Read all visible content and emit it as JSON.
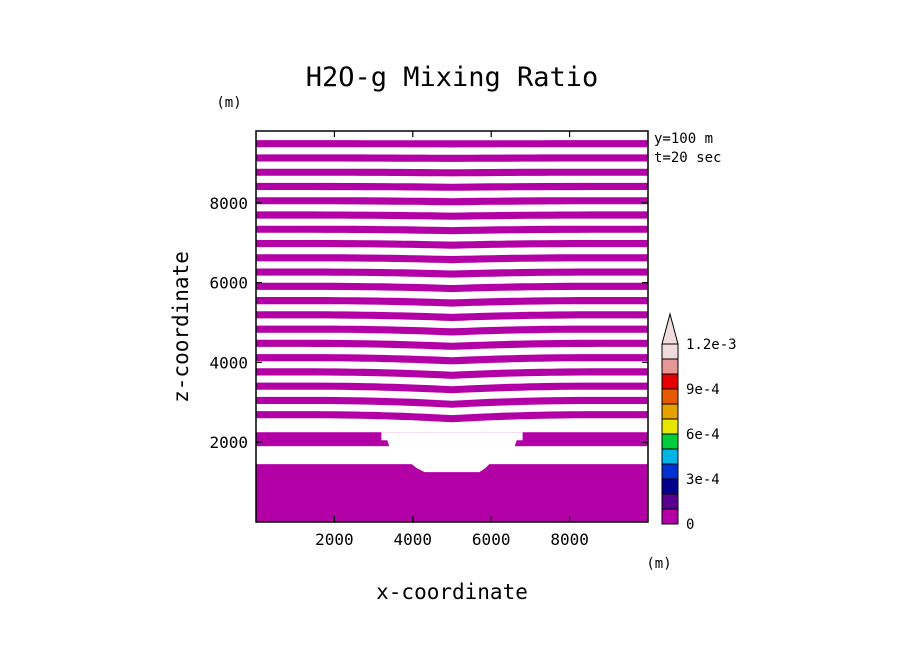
{
  "chart_data": {
    "type": "heatmap",
    "title": "H2O-g Mixing Ratio",
    "xlabel": "x-coordinate",
    "ylabel": "z-coordinate",
    "xunit": "(m)",
    "yunit": "(m)",
    "annotations": [
      "y=100 m",
      "t=20 sec"
    ],
    "xlim": [
      0,
      10000
    ],
    "ylim": [
      0,
      9800
    ],
    "xticks": [
      2000,
      4000,
      6000,
      8000
    ],
    "yticks": [
      2000,
      4000,
      6000,
      8000
    ],
    "field_color": "#b300a6",
    "bands_upper": {
      "z_start": 2600,
      "z_end": 9750,
      "count": 20,
      "center_x": 5000,
      "edge_sag": 100,
      "sag_extent": 3600
    },
    "lower_block": {
      "z_bottom": 0,
      "z_top": 2250,
      "gap_bottom": 1450,
      "gap_top": 1900
    },
    "cutout_profile": [
      [
        3200,
        2250
      ],
      [
        3200,
        2050
      ],
      [
        3350,
        2050
      ],
      [
        3400,
        1900
      ],
      [
        3500,
        1800
      ],
      [
        3700,
        1800
      ],
      [
        3800,
        1650
      ],
      [
        3850,
        1550
      ],
      [
        4100,
        1350
      ],
      [
        4300,
        1250
      ],
      [
        5700,
        1250
      ],
      [
        5850,
        1350
      ],
      [
        6050,
        1550
      ],
      [
        6150,
        1650
      ],
      [
        6300,
        1800
      ],
      [
        6500,
        1800
      ],
      [
        6600,
        1900
      ],
      [
        6650,
        2050
      ],
      [
        6800,
        2050
      ],
      [
        6800,
        2250
      ]
    ],
    "colorbar": {
      "labels": [
        "0",
        "3e-4",
        "6e-4",
        "9e-4",
        "1.2e-3"
      ],
      "label_values": [
        0,
        0.0003,
        0.0006,
        0.0009,
        0.0012
      ],
      "colors": [
        "#b300a6",
        "#5a0090",
        "#00008a",
        "#0032d2",
        "#00b4e6",
        "#00cd3c",
        "#e6e600",
        "#e6a000",
        "#e65a00",
        "#e60000",
        "#e69696",
        "#f0dcdc"
      ],
      "step": 0.0001
    }
  }
}
